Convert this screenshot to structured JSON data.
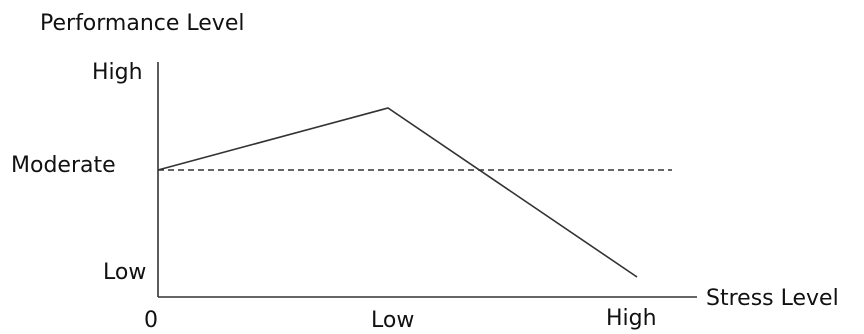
{
  "chart_data": {
    "type": "line",
    "ylabel": "Performance Level",
    "xlabel": "Stress Level",
    "x_ticks": [
      "0",
      "Low",
      "High"
    ],
    "y_ticks": [
      "High",
      "Moderate",
      "Low"
    ],
    "series": [
      {
        "points": [
          {
            "x": "0",
            "y": "Moderate"
          },
          {
            "x": "Low",
            "y": "High"
          },
          {
            "x": "High",
            "y": "Low"
          }
        ]
      }
    ],
    "reference_line": {
      "y": "Moderate",
      "style": "dashed"
    }
  }
}
